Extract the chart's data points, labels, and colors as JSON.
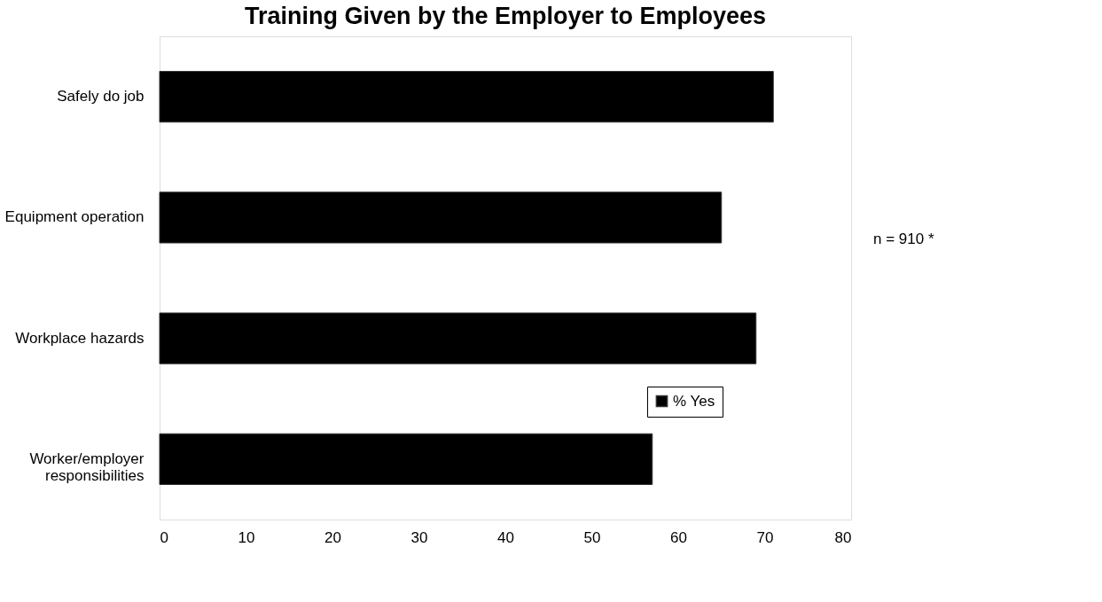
{
  "chart_data": {
    "type": "bar",
    "orientation": "horizontal",
    "title": "Training Given by the Employer to Employees",
    "categories": [
      "Safely do job",
      "Equipment operation",
      "Workplace hazards",
      "Worker/employer responsibilities"
    ],
    "series": [
      {
        "name": "% Yes",
        "color": "#000000",
        "values": [
          71,
          65,
          69,
          57
        ]
      }
    ],
    "xlim": [
      0,
      80
    ],
    "xticks": [
      0,
      10,
      20,
      30,
      40,
      50,
      60,
      70,
      80
    ],
    "grid": false,
    "legend": "bottom right",
    "annotations": [
      "n = 910 *"
    ]
  }
}
